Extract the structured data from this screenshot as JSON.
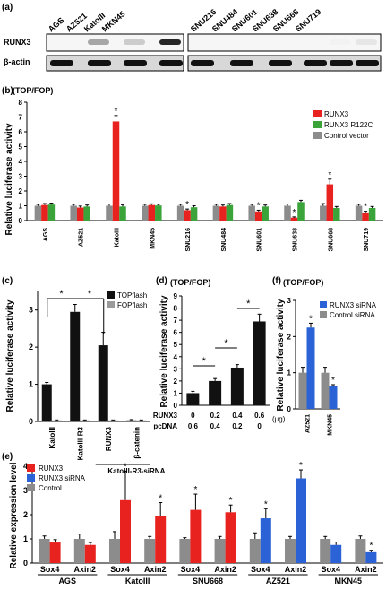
{
  "panel_labels": {
    "a": "(a)",
    "b": "(b)",
    "c": "(c)",
    "d": "(d)",
    "e": "(e)",
    "f": "(f)"
  },
  "blot": {
    "lanes": [
      "AGS",
      "AZ521",
      "KatoIII",
      "MKN45",
      "SNU216",
      "SNU484",
      "SNU601",
      "SNU638",
      "SNU668",
      "SNU719"
    ],
    "rows": [
      "RUNX3",
      "β-actin"
    ],
    "runx3_intensity": [
      0.0,
      0.35,
      0.2,
      0.85,
      0.0,
      0.0,
      0.0,
      0.0,
      0.05,
      0.1
    ]
  },
  "colors": {
    "runx3": "#e8231f",
    "r122c": "#3aa43a",
    "control": "#8c8c8c",
    "sirna": "#2b62d6",
    "topflash": "#111111",
    "fopflash": "#9a9a9a",
    "white": "#ffffff"
  },
  "chart_data": [
    {
      "id": "b",
      "type": "bar",
      "title": "(TOP/FOP)",
      "ylabel": "Relative luciferase activity",
      "ylim": [
        0,
        8
      ],
      "yticks": [
        0,
        1,
        2,
        3,
        4,
        5,
        6,
        7,
        8
      ],
      "categories": [
        "AGS",
        "AZ521",
        "KatoIII",
        "MKN45",
        "SNU216",
        "SNU484",
        "SNU601",
        "SNU638",
        "SNU668",
        "SNU719"
      ],
      "series": [
        {
          "name": "RUNX3",
          "values": [
            1.05,
            0.88,
            6.7,
            1.05,
            0.7,
            0.95,
            0.62,
            0.2,
            2.45,
            0.55
          ],
          "err": [
            0.1,
            0.1,
            0.4,
            0.08,
            0.08,
            0.1,
            0.08,
            0.05,
            0.35,
            0.08
          ],
          "star": [
            false,
            false,
            true,
            false,
            true,
            false,
            true,
            true,
            true,
            true
          ]
        },
        {
          "name": "RUNX3 R122C",
          "values": [
            1.08,
            0.95,
            0.95,
            1.02,
            0.9,
            1.05,
            0.95,
            1.25,
            0.85,
            0.85
          ],
          "err": [
            0.1,
            0.1,
            0.12,
            0.08,
            0.1,
            0.1,
            0.1,
            0.12,
            0.1,
            0.1
          ],
          "star": [
            false,
            false,
            false,
            false,
            false,
            false,
            false,
            false,
            false,
            false
          ]
        },
        {
          "name": "Control vector",
          "values": [
            1.0,
            1.0,
            1.0,
            1.0,
            1.0,
            1.0,
            1.0,
            1.0,
            1.0,
            1.0
          ],
          "err": [
            0.1,
            0.1,
            0.12,
            0.1,
            0.1,
            0.1,
            0.1,
            0.12,
            0.15,
            0.1
          ],
          "star": [
            false,
            false,
            false,
            false,
            false,
            false,
            false,
            false,
            false,
            false
          ]
        }
      ],
      "legend": "right"
    },
    {
      "id": "c",
      "type": "bar",
      "ylabel": "Relative luciferase activity",
      "ylim": [
        0,
        3.5
      ],
      "yticks": [
        0,
        1,
        2,
        3
      ],
      "categories": [
        "KatoIII",
        "KatoIII-R3",
        "RUNX3",
        "β-catenin"
      ],
      "group_label": "KatoIII-R3-siRNA",
      "series": [
        {
          "name": "TOPflash",
          "values": [
            1.0,
            2.95,
            2.05,
            0.03
          ],
          "err": [
            0.05,
            0.2,
            0.35,
            0.02
          ]
        },
        {
          "name": "FOPflash",
          "values": [
            0.03,
            0.03,
            0.03,
            0.03
          ],
          "err": [
            0.01,
            0.01,
            0.01,
            0.01
          ]
        }
      ],
      "sig": [
        [
          "KatoIII",
          "KatoIII-R3"
        ],
        [
          "KatoIII-R3",
          "RUNX3"
        ]
      ],
      "legend": "top-right"
    },
    {
      "id": "d",
      "type": "bar",
      "title": "(TOP/FOP)",
      "ylabel": "Relative luciferase activity",
      "ylim": [
        0,
        9
      ],
      "yticks": [
        0,
        1,
        2,
        3,
        4,
        5,
        6,
        7,
        8,
        9
      ],
      "categories": [
        "1",
        "2",
        "3",
        "4"
      ],
      "series": [
        {
          "name": "",
          "values": [
            1.0,
            2.0,
            3.1,
            6.9
          ],
          "err": [
            0.15,
            0.2,
            0.25,
            0.6
          ]
        }
      ],
      "table": {
        "row1_label": "RUNX3",
        "row1": [
          "0",
          "0.2",
          "0.4",
          "0.6"
        ],
        "row2_label": "pcDNA",
        "row2": [
          "0.6",
          "0.4",
          "0.2",
          "0"
        ],
        "unit": "(μg)"
      },
      "sig": [
        [
          0,
          1
        ],
        [
          1,
          2
        ],
        [
          2,
          3
        ]
      ]
    },
    {
      "id": "f",
      "type": "bar",
      "title": "(TOP/FOP)",
      "ylabel": "Relative luciferase activity",
      "ylim": [
        0,
        3
      ],
      "yticks": [
        0,
        1,
        2,
        3
      ],
      "categories": [
        "AZ521",
        "MKN45"
      ],
      "series": [
        {
          "name": "Control siRNA",
          "values": [
            1.0,
            1.0
          ],
          "err": [
            0.15,
            0.15
          ]
        },
        {
          "name": "RUNX3 siRNA",
          "values": [
            2.25,
            0.62
          ],
          "err": [
            0.12,
            0.05
          ],
          "star": [
            true,
            true
          ]
        }
      ],
      "legend": "top-right"
    },
    {
      "id": "e",
      "type": "bar",
      "ylabel": "Relative expression level",
      "ylim": [
        0,
        4
      ],
      "yticks": [
        0,
        1,
        2,
        3,
        4
      ],
      "groups": [
        "AGS",
        "KatoIII",
        "SNU668",
        "AZ521",
        "MKN45"
      ],
      "genes": [
        "Sox4",
        "Axin2"
      ],
      "control": [
        [
          1.0,
          1.0
        ],
        [
          1.0,
          1.0
        ],
        [
          1.0,
          1.0
        ],
        [
          1.0,
          1.0
        ],
        [
          1.0,
          1.0
        ]
      ],
      "control_err": [
        [
          0.12,
          0.2
        ],
        [
          0.3,
          0.1
        ],
        [
          0.05,
          0.1
        ],
        [
          0.25,
          0.1
        ],
        [
          0.1,
          0.12
        ]
      ],
      "treated": [
        [
          0.85,
          0.75
        ],
        [
          2.6,
          1.95
        ],
        [
          2.2,
          2.1
        ],
        [
          1.85,
          3.5
        ],
        [
          0.75,
          0.45
        ]
      ],
      "treated_err": [
        [
          0.12,
          0.1
        ],
        [
          1.2,
          0.55
        ],
        [
          0.65,
          0.3
        ],
        [
          0.4,
          0.35
        ],
        [
          0.12,
          0.08
        ]
      ],
      "treated_series": [
        "RUNX3",
        "RUNX3",
        "RUNX3",
        "RUNX3 siRNA",
        "RUNX3 siRNA"
      ],
      "star": [
        [
          false,
          false
        ],
        [
          true,
          true
        ],
        [
          true,
          true
        ],
        [
          true,
          true
        ],
        [
          false,
          true
        ]
      ],
      "legend": [
        "RUNX3",
        "RUNX3 siRNA",
        "Control"
      ]
    }
  ],
  "misc": {
    "star": "*"
  }
}
